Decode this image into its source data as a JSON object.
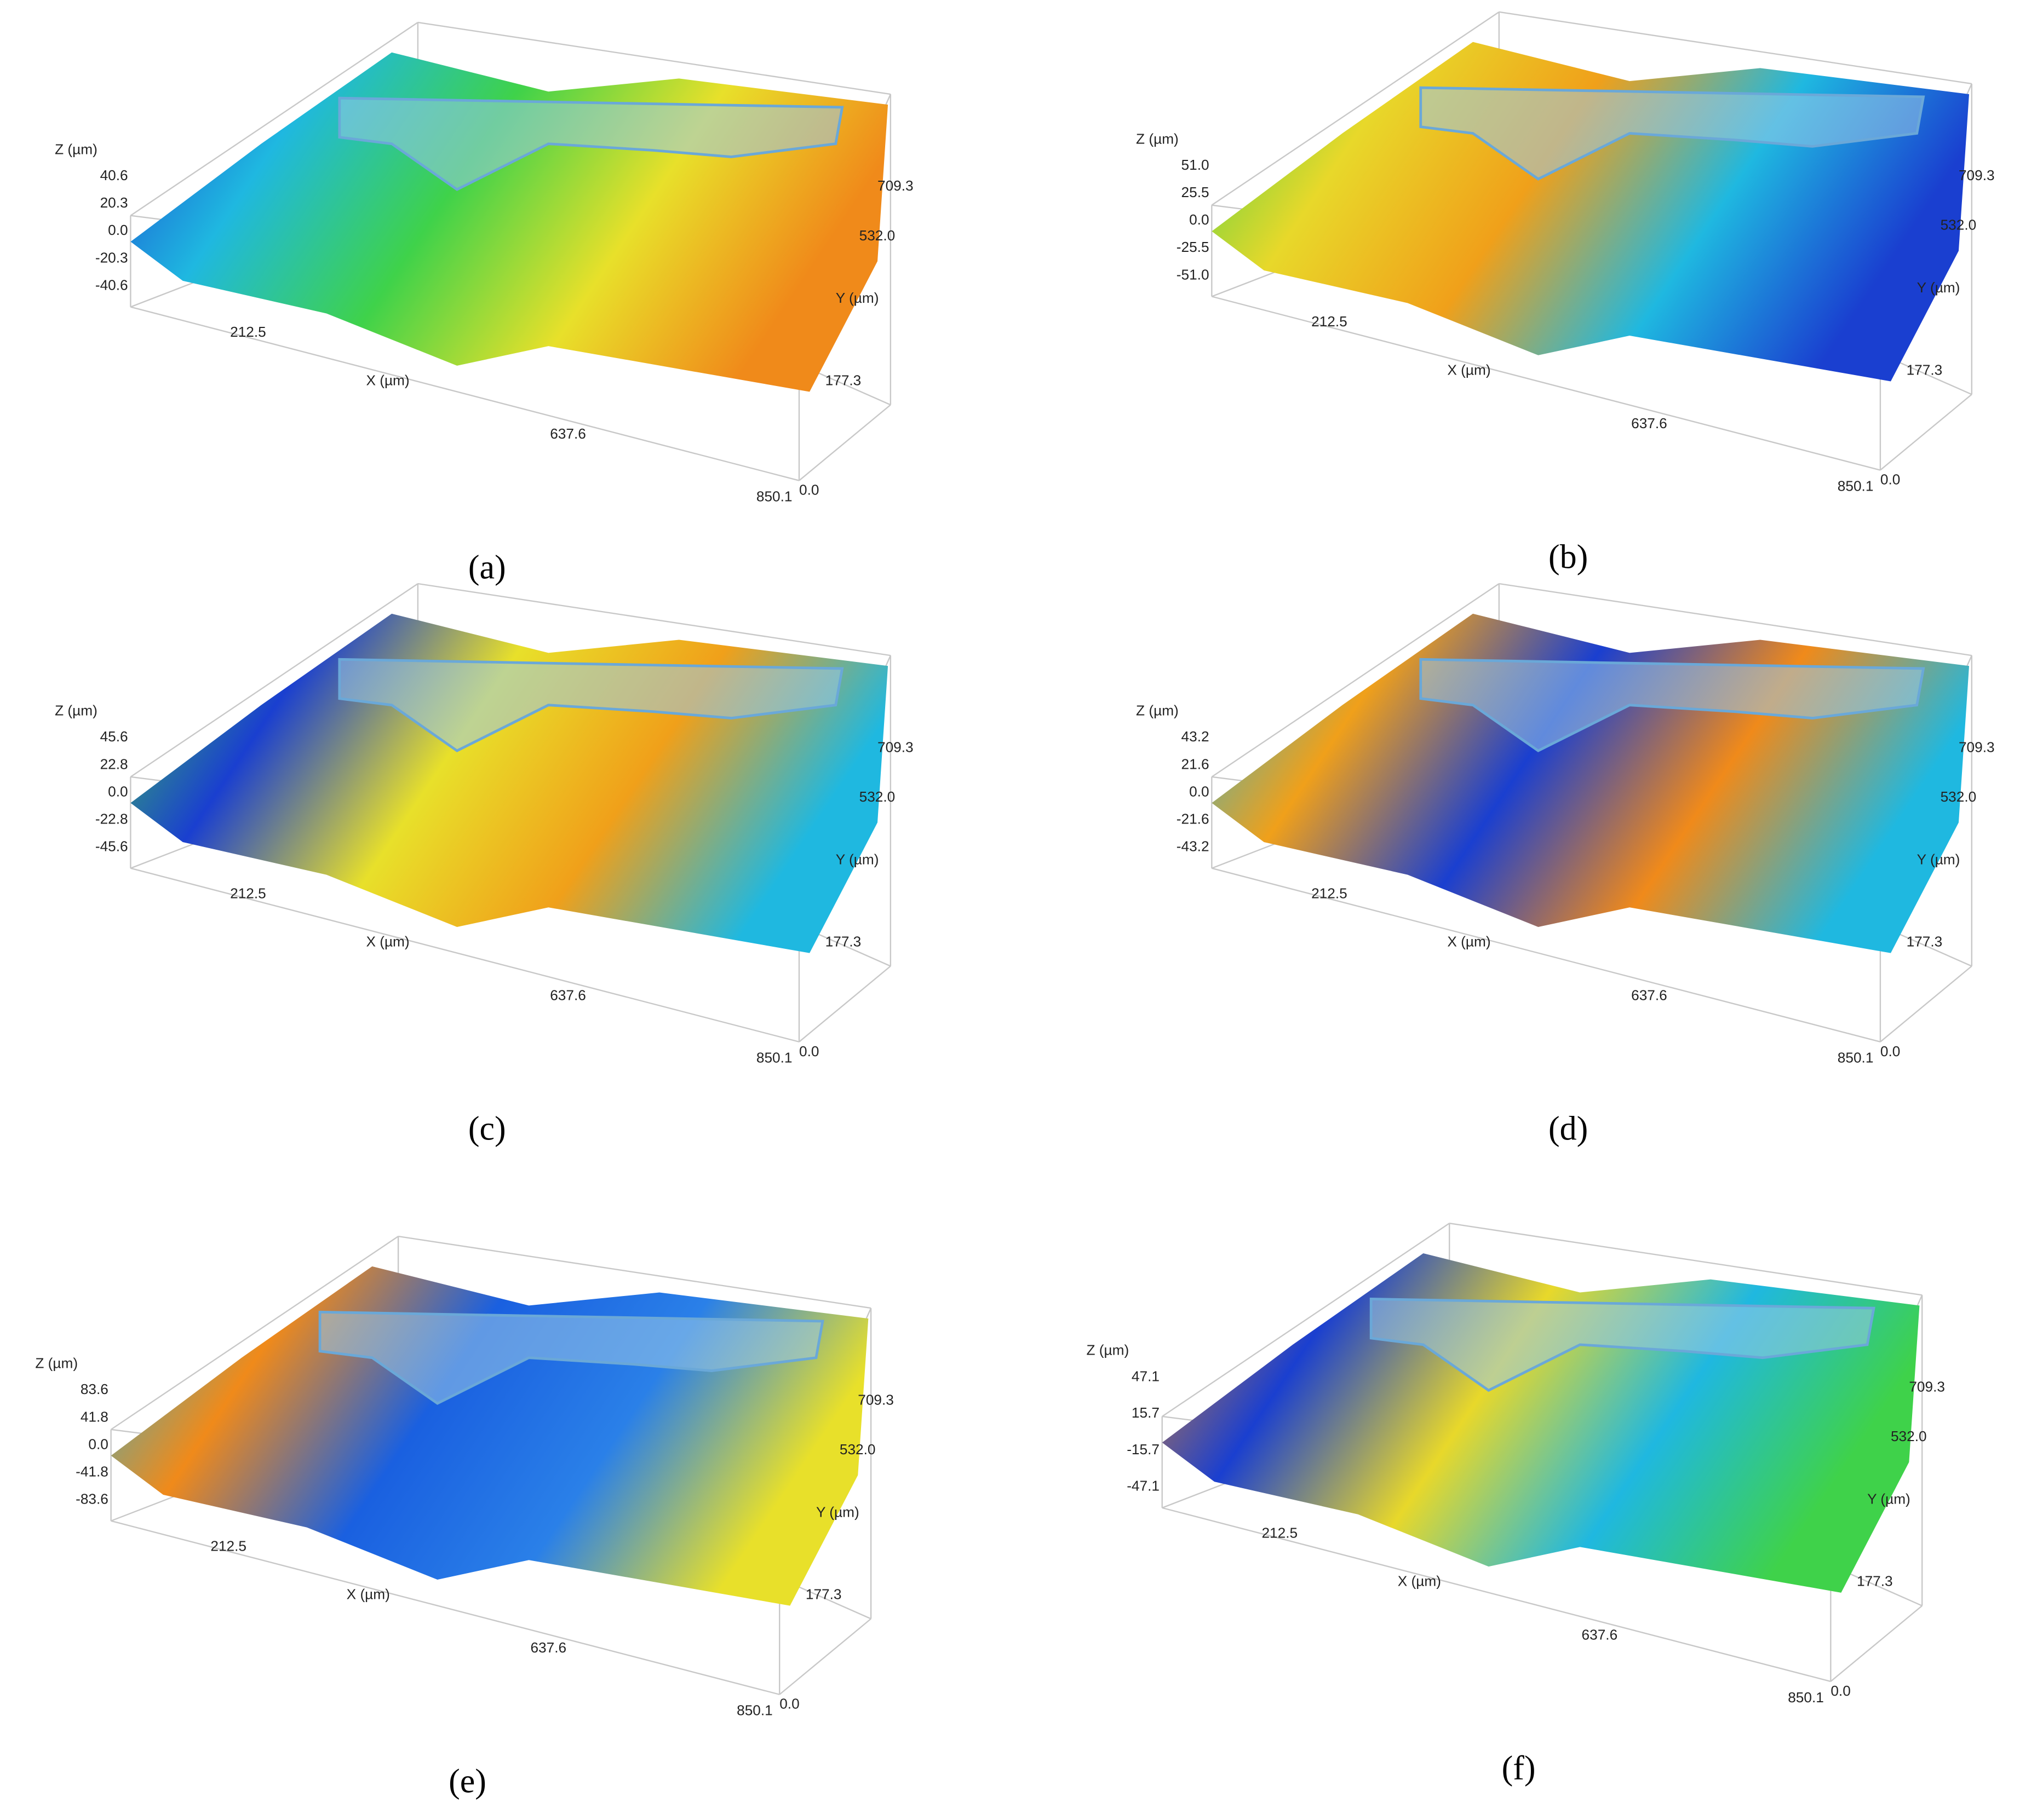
{
  "panels": [
    {
      "caption": "(a)",
      "z_title": "Z (µm)",
      "z_ticks": [
        "40.6",
        "20.3",
        "0.0",
        "-20.3",
        "-40.6"
      ],
      "x_title": "X (µm)",
      "x_ticks": [
        "212.5",
        "637.6",
        "850.1"
      ],
      "y_title": "Y (µm)",
      "y_ticks": [
        "0.0",
        "177.3",
        "532.0",
        "709.3"
      ]
    },
    {
      "caption": "(b)",
      "z_title": "Z (µm)",
      "z_ticks": [
        "51.0",
        "25.5",
        "0.0",
        "-25.5",
        "-51.0"
      ],
      "x_title": "X (µm)",
      "x_ticks": [
        "212.5",
        "637.6",
        "850.1"
      ],
      "y_title": "Y (µm)",
      "y_ticks": [
        "0.0",
        "177.3",
        "532.0",
        "709.3"
      ]
    },
    {
      "caption": "(c)",
      "z_title": "Z (µm)",
      "z_ticks": [
        "45.6",
        "22.8",
        "0.0",
        "-22.8",
        "-45.6"
      ],
      "x_title": "X (µm)",
      "x_ticks": [
        "212.5",
        "637.6",
        "850.1"
      ],
      "y_title": "Y (µm)",
      "y_ticks": [
        "0.0",
        "177.3",
        "532.0",
        "709.3"
      ]
    },
    {
      "caption": "(d)",
      "z_title": "Z (µm)",
      "z_ticks": [
        "43.2",
        "21.6",
        "0.0",
        "-21.6",
        "-43.2"
      ],
      "x_title": "X (µm)",
      "x_ticks": [
        "212.5",
        "637.6",
        "850.1"
      ],
      "y_title": "Y (µm)",
      "y_ticks": [
        "0.0",
        "177.3",
        "532.0",
        "709.3"
      ]
    },
    {
      "caption": "(e)",
      "z_title": "Z (µm)",
      "z_ticks": [
        "83.6",
        "41.8",
        "0.0",
        "-41.8",
        "-83.6"
      ],
      "x_title": "X (µm)",
      "x_ticks": [
        "212.5",
        "637.6",
        "850.1"
      ],
      "y_title": "Y (µm)",
      "y_ticks": [
        "0.0",
        "177.3",
        "532.0",
        "709.3"
      ]
    },
    {
      "caption": "(f)",
      "z_title": "Z (µm)",
      "z_ticks": [
        "47.1",
        "15.7",
        "-15.7",
        "-47.1"
      ],
      "x_title": "X (µm)",
      "x_ticks": [
        "212.5",
        "637.6",
        "850.1"
      ],
      "y_title": "Y (µm)",
      "y_ticks": [
        "0.0",
        "177.3",
        "532.0",
        "709.3"
      ]
    }
  ]
}
